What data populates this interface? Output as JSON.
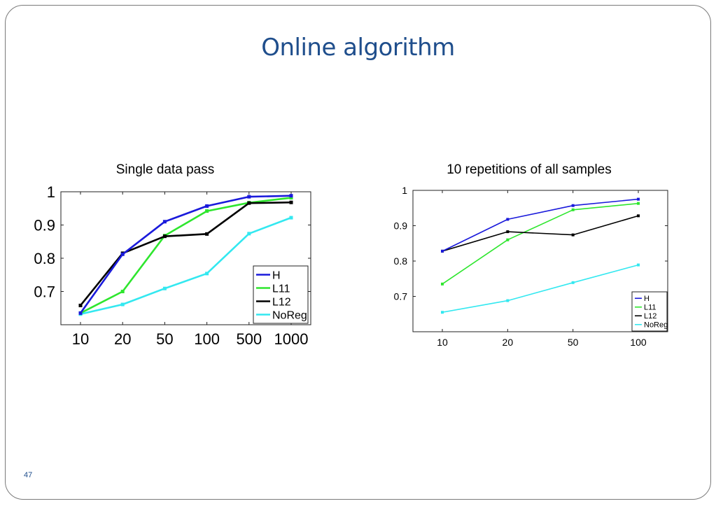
{
  "slide": {
    "title": "Online algorithm",
    "page_number": "47"
  },
  "colors": {
    "title": "#1f4e8c",
    "H": "#1a1adb",
    "L11": "#2ee62e",
    "L12": "#000000",
    "NoReg": "#33e8f0"
  },
  "chart_data": [
    {
      "type": "line",
      "title": "Single data pass",
      "x_categories": [
        "10",
        "20",
        "50",
        "100",
        "500",
        "1000"
      ],
      "y_ticks": [
        "0.7",
        "0.8",
        "0.9",
        "1"
      ],
      "ylim": [
        0.6,
        1.0
      ],
      "legend": "bottom-right",
      "grid": false,
      "series": [
        {
          "name": "H",
          "values": [
            0.635,
            0.812,
            0.91,
            0.957,
            0.985,
            0.988
          ]
        },
        {
          "name": "L11",
          "values": [
            0.635,
            0.7,
            0.868,
            0.942,
            0.967,
            0.982
          ]
        },
        {
          "name": "L12",
          "values": [
            0.658,
            0.815,
            0.866,
            0.873,
            0.966,
            0.968
          ]
        },
        {
          "name": "NoReg",
          "values": [
            0.632,
            0.661,
            0.709,
            0.754,
            0.874,
            0.922
          ]
        }
      ]
    },
    {
      "type": "line",
      "title": "10 repetitions of all samples",
      "x_categories": [
        "10",
        "20",
        "50",
        "100"
      ],
      "y_ticks": [
        "0.7",
        "0.8",
        "0.9",
        "1"
      ],
      "ylim": [
        0.6,
        1.0
      ],
      "legend": "bottom-right",
      "grid": false,
      "series": [
        {
          "name": "H",
          "values": [
            0.828,
            0.918,
            0.957,
            0.975
          ]
        },
        {
          "name": "L11",
          "values": [
            0.735,
            0.86,
            0.945,
            0.963
          ]
        },
        {
          "name": "L12",
          "values": [
            0.828,
            0.883,
            0.874,
            0.928
          ]
        },
        {
          "name": "NoReg",
          "values": [
            0.655,
            0.688,
            0.739,
            0.789
          ]
        }
      ]
    }
  ]
}
